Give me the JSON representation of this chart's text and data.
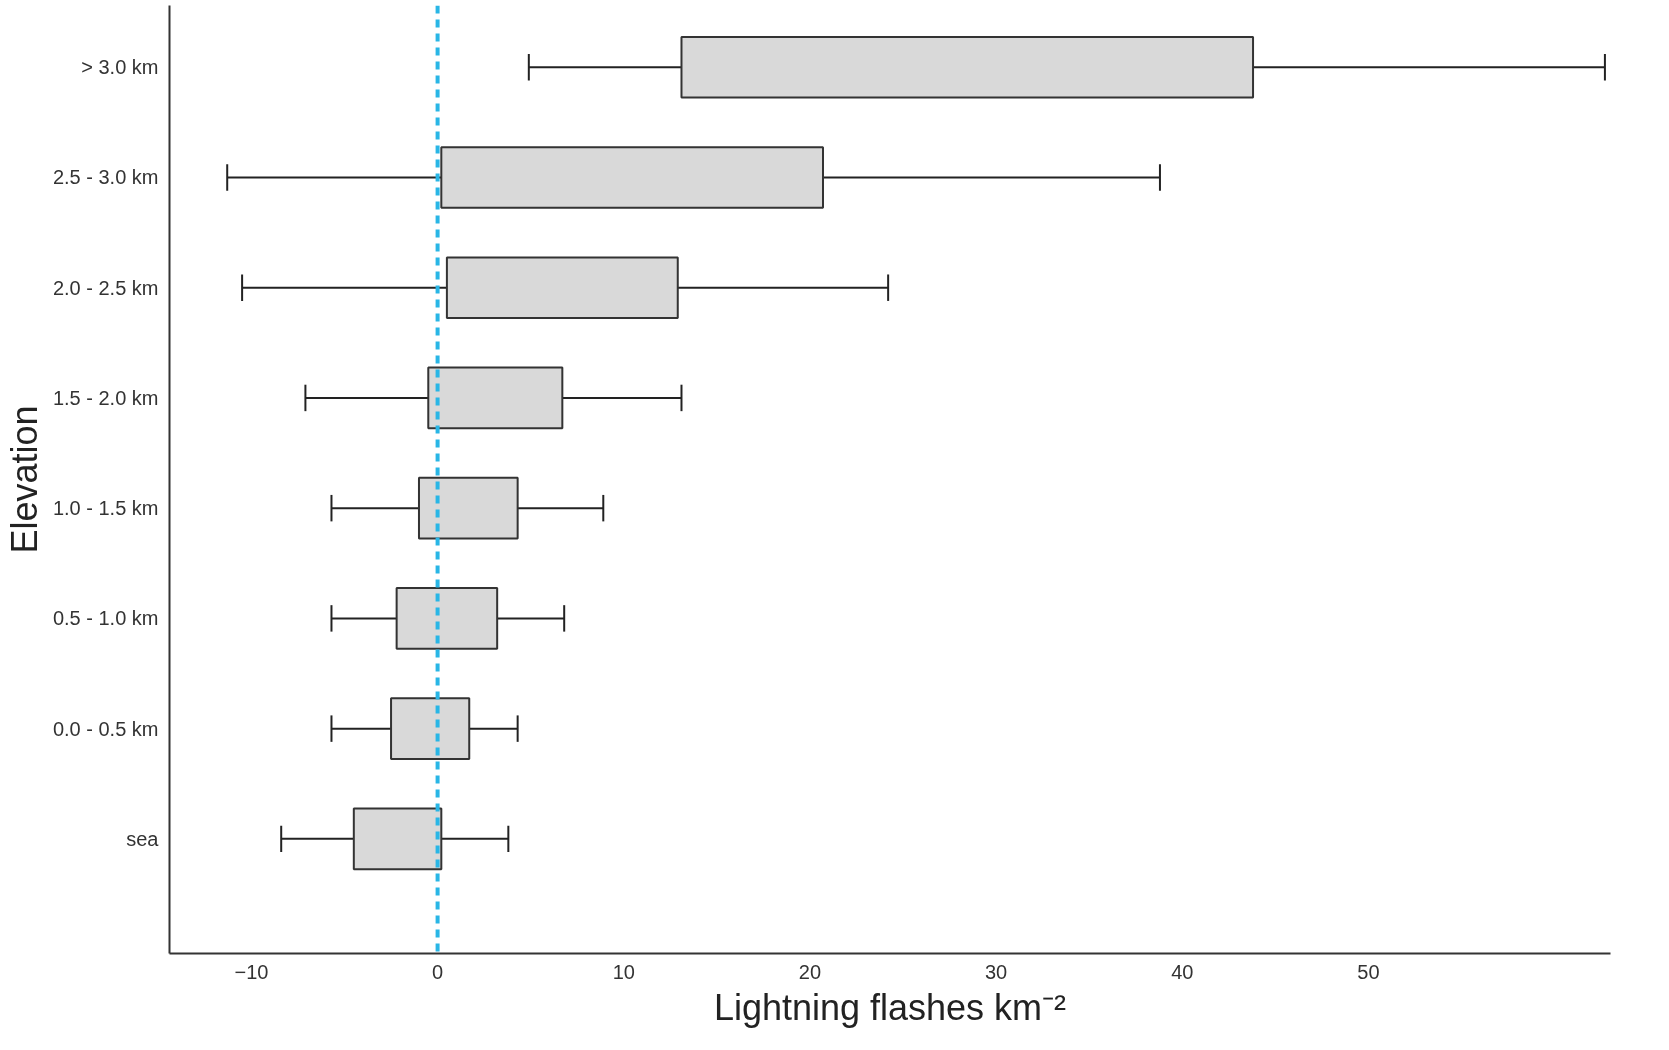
{
  "chart_data": {
    "type": "box",
    "orientation": "horizontal",
    "categories": [
      "> 3.0 km",
      "2.5 - 3.0 km",
      "2.0 - 2.5 km",
      "1.5 - 2.0 km",
      "1.0 - 1.5 km",
      "0.5 - 1.0 km",
      "0.0 - 0.5 km",
      "sea"
    ],
    "boxes": [
      {
        "low": 4.9,
        "q1": 13.1,
        "q3": 43.8,
        "high": 62.7
      },
      {
        "low": -11.3,
        "q1": 0.2,
        "q3": 20.7,
        "high": 38.8
      },
      {
        "low": -10.5,
        "q1": 0.5,
        "q3": 12.9,
        "high": 24.2
      },
      {
        "low": -7.1,
        "q1": -0.5,
        "q3": 6.7,
        "high": 13.1
      },
      {
        "low": -5.7,
        "q1": -1.0,
        "q3": 4.3,
        "high": 8.9
      },
      {
        "low": -5.7,
        "q1": -2.2,
        "q3": 3.2,
        "high": 6.8
      },
      {
        "low": -5.7,
        "q1": -2.5,
        "q3": 1.7,
        "high": 4.3
      },
      {
        "low": -8.4,
        "q1": -4.5,
        "q3": 0.2,
        "high": 3.8
      }
    ],
    "xlim": [
      -14.4,
      63
    ],
    "xticks": [
      -10,
      0,
      10,
      20,
      30,
      40,
      50
    ],
    "xlabel": "Lightning flashes km⁻²",
    "ylabel": "Elevation",
    "ref_lines": [
      {
        "axis": "x",
        "value": 0,
        "color": "#29b6e6",
        "line_style": "dashed"
      }
    ],
    "grid": false
  }
}
